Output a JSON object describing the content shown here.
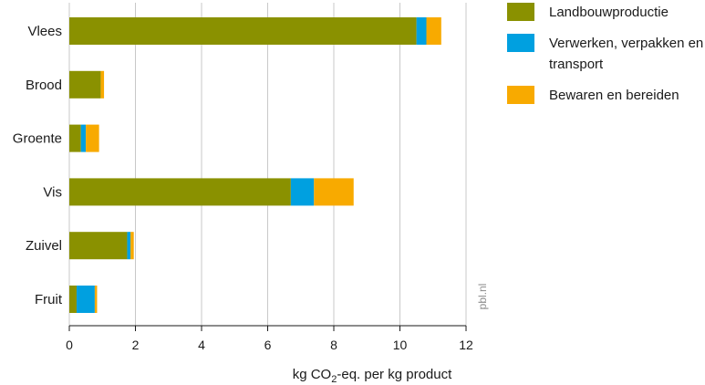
{
  "chart_data": {
    "type": "bar",
    "orientation": "horizontal",
    "stacked": true,
    "categories": [
      "Vlees",
      "Brood",
      "Groente",
      "Vis",
      "Zuivel",
      "Fruit"
    ],
    "series": [
      {
        "name": "Landbouwproductie",
        "color": "#8a9100",
        "values": [
          10.5,
          0.95,
          0.35,
          6.7,
          1.75,
          0.22
        ]
      },
      {
        "name": "Verwerken, verpakken en transport",
        "color": "#00a0e0",
        "values": [
          0.3,
          0.0,
          0.15,
          0.7,
          0.1,
          0.55
        ]
      },
      {
        "name": "Bewaren en bereiden",
        "color": "#f8aa00",
        "values": [
          0.45,
          0.1,
          0.4,
          1.2,
          0.1,
          0.07
        ]
      }
    ],
    "xticks": [
      0,
      2,
      4,
      6,
      8,
      10,
      12
    ],
    "xlim": [
      0,
      12
    ],
    "xlabel": {
      "prefix": "kg CO",
      "sub": "2",
      "suffix": "-eq. per kg product"
    },
    "grid": "vertical",
    "legend": "top-right"
  },
  "credit": "pbl.nl"
}
